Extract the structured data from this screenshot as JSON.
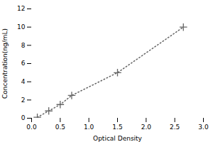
{
  "chart_data": {
    "type": "line",
    "x": [
      0.1,
      0.3,
      0.5,
      0.7,
      1.5,
      2.65
    ],
    "values": [
      0.1,
      0.8,
      1.5,
      2.5,
      5.0,
      10.0
    ],
    "xlabel": "Optical Density",
    "ylabel": "Concentration(ng/mL)",
    "xlim": [
      0,
      3
    ],
    "ylim": [
      0,
      12
    ],
    "xticks": [
      {
        "value": 0,
        "label": "0.0"
      },
      0.5,
      {
        "value": 1,
        "label": "1.0"
      },
      1.5,
      {
        "value": 2,
        "label": "2.0"
      },
      2.5,
      {
        "value": 3,
        "label": "3.0"
      }
    ],
    "yticks": [
      0,
      2,
      4,
      6,
      8,
      10,
      12
    ],
    "color": "#666666",
    "marker": "plus",
    "line_style": "dotted",
    "grid": false
  }
}
